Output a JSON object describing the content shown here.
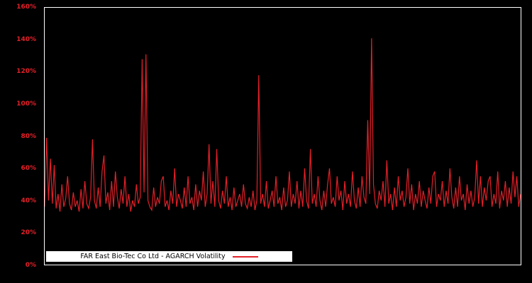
{
  "chart_data": {
    "type": "line",
    "title": "",
    "legend": "FAR East Bio-Tec Co Ltd - AGARCH Volatility",
    "series_color": "#e32028",
    "background_color": "#000000",
    "ylabel": "",
    "xlabel": "",
    "ylim": [
      0,
      160
    ],
    "y_unit": "%",
    "grid": false,
    "legend_position": "bottom-left",
    "y_tick_labels": [
      "0%",
      "20%",
      "40%",
      "60%",
      "80%",
      "100%",
      "120%",
      "140%",
      "160%"
    ],
    "values": [
      36,
      79,
      40,
      66,
      38,
      62,
      35,
      44,
      33,
      50,
      36,
      41,
      55,
      38,
      34,
      45,
      36,
      40,
      33,
      47,
      35,
      52,
      38,
      35,
      42,
      78,
      40,
      35,
      48,
      36,
      58,
      68,
      38,
      45,
      34,
      52,
      36,
      58,
      42,
      35,
      47,
      38,
      55,
      36,
      44,
      33,
      40,
      36,
      50,
      38,
      42,
      128,
      45,
      131,
      40,
      36,
      34,
      48,
      36,
      42,
      38,
      52,
      55,
      36,
      40,
      34,
      46,
      38,
      60,
      36,
      44,
      40,
      35,
      48,
      36,
      55,
      38,
      42,
      34,
      50,
      36,
      46,
      40,
      58,
      36,
      44,
      75,
      38,
      52,
      36,
      72,
      40,
      35,
      46,
      38,
      55,
      36,
      42,
      34,
      48,
      36,
      40,
      44,
      36,
      50,
      38,
      35,
      42,
      36,
      46,
      34,
      40,
      118,
      38,
      44,
      36,
      52,
      35,
      40,
      46,
      36,
      55,
      38,
      42,
      34,
      48,
      36,
      40,
      58,
      36,
      44,
      38,
      52,
      35,
      46,
      36,
      60,
      40,
      35,
      72,
      38,
      44,
      36,
      55,
      40,
      34,
      46,
      36,
      50,
      60,
      38,
      42,
      36,
      55,
      40,
      46,
      34,
      52,
      38,
      44,
      36,
      58,
      40,
      35,
      48,
      36,
      55,
      42,
      38,
      90,
      44,
      141,
      50,
      38,
      35,
      46,
      40,
      52,
      36,
      65,
      38,
      44,
      34,
      48,
      36,
      55,
      40,
      46,
      36,
      42,
      60,
      38,
      50,
      34,
      44,
      38,
      52,
      36,
      46,
      40,
      35,
      48,
      38,
      55,
      58,
      36,
      44,
      40,
      52,
      36,
      46,
      38,
      60,
      42,
      35,
      48,
      36,
      55,
      40,
      44,
      34,
      50,
      38,
      46,
      36,
      42,
      65,
      38,
      55,
      36,
      48,
      40,
      52,
      55,
      36,
      44,
      38,
      58,
      35,
      46,
      40,
      52,
      36,
      48,
      38,
      58,
      42,
      55,
      36,
      44
    ]
  }
}
